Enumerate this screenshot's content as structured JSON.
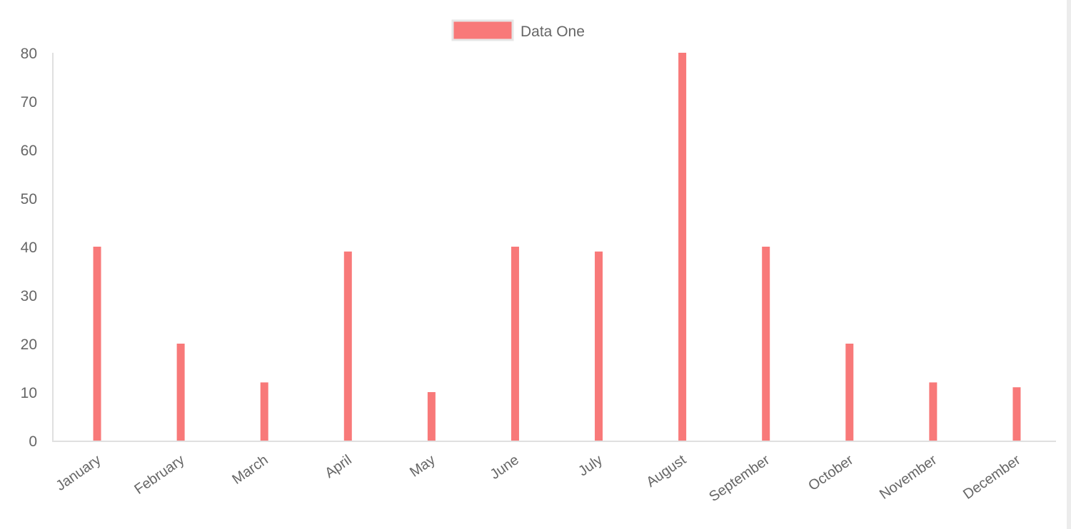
{
  "chart_data": {
    "type": "bar",
    "title": "",
    "xlabel": "",
    "ylabel": "",
    "categories": [
      "January",
      "February",
      "March",
      "April",
      "May",
      "June",
      "July",
      "August",
      "September",
      "October",
      "November",
      "December"
    ],
    "series": [
      {
        "name": "Data One",
        "color": "#f87979",
        "values": [
          40,
          20,
          12,
          39,
          10,
          40,
          39,
          80,
          40,
          20,
          12,
          11
        ]
      }
    ],
    "ylim": [
      0,
      80
    ],
    "yticks": [
      0,
      10,
      20,
      30,
      40,
      50,
      60,
      70,
      80
    ],
    "grid": false,
    "legend": "top-center"
  }
}
